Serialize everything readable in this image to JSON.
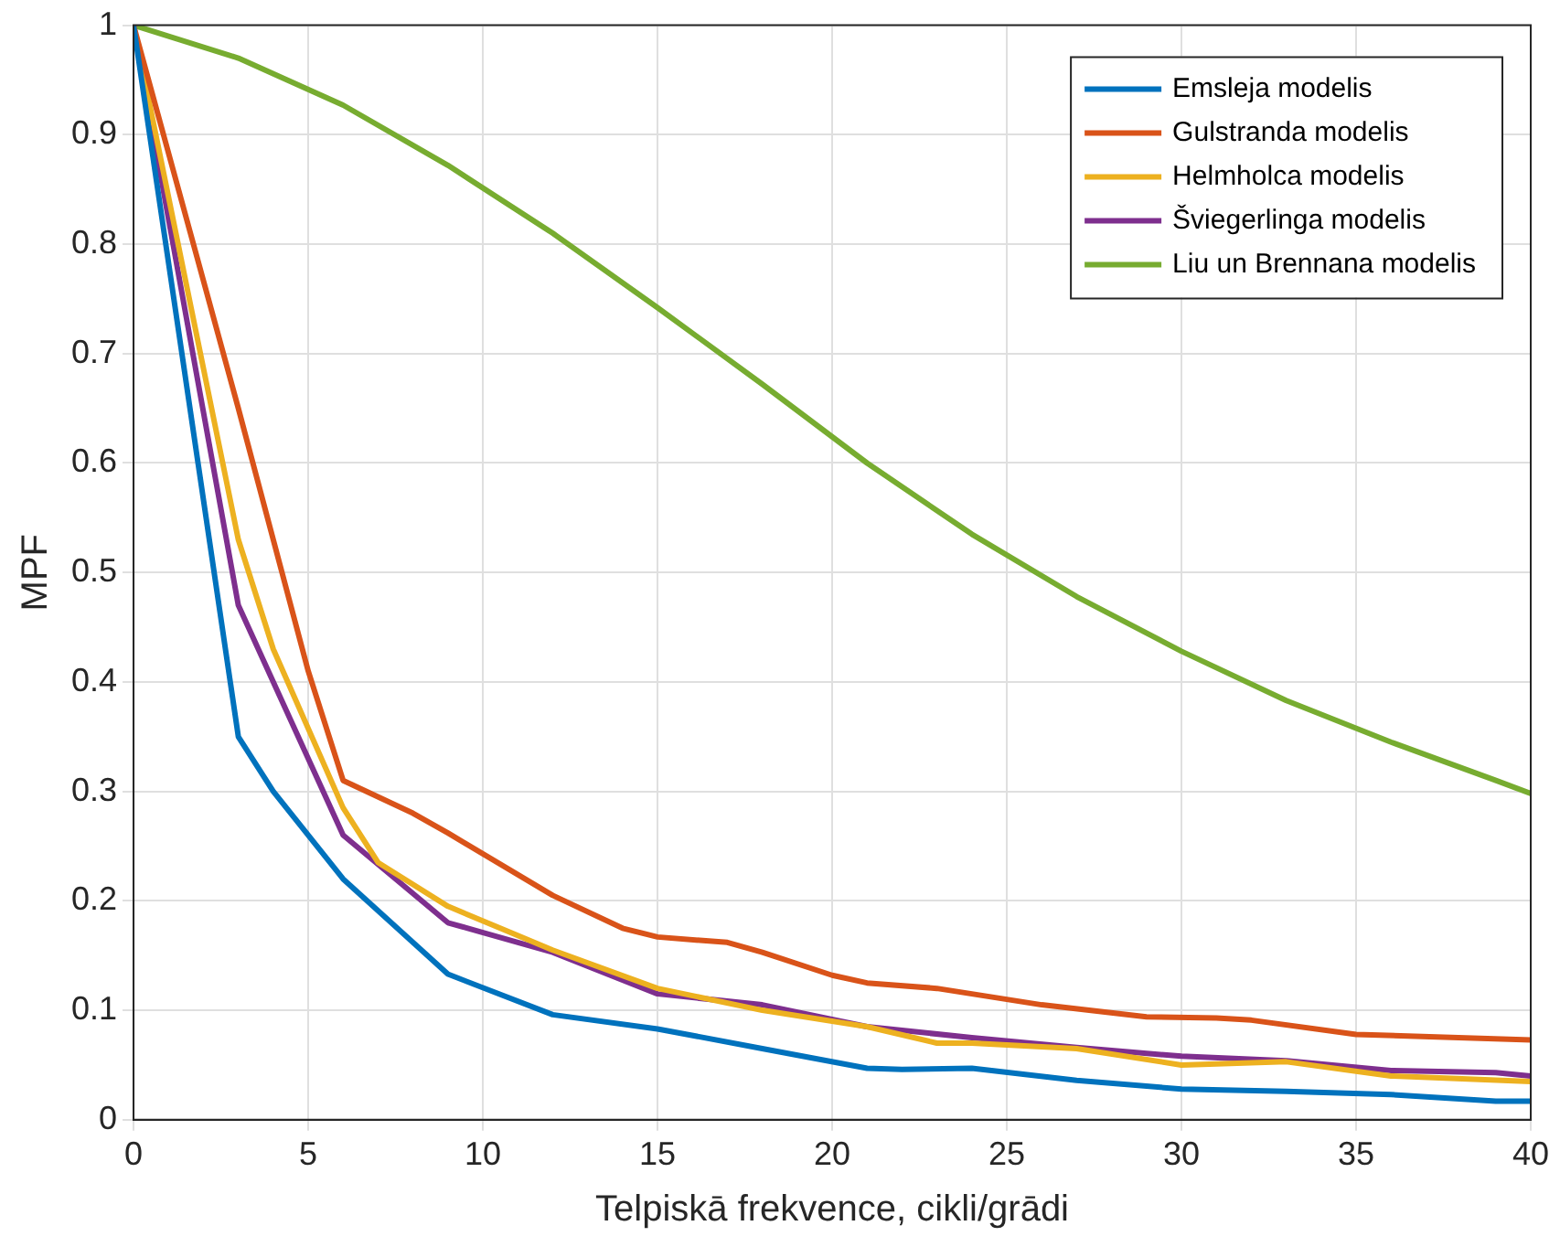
{
  "chart_data": {
    "type": "line",
    "xlabel": "Telpiskā frekvence, cikli/grādi",
    "ylabel": "MPF",
    "xlim": [
      0,
      40
    ],
    "xticks": [
      0,
      5,
      10,
      15,
      20,
      25,
      30,
      35,
      40
    ],
    "ylim": [
      0,
      1
    ],
    "yticks": [
      0,
      0.1,
      0.2,
      0.3,
      0.4,
      0.5,
      0.6,
      0.7,
      0.8,
      0.9,
      1
    ],
    "grid": true,
    "legend": "top right",
    "marker": "none",
    "line_style": "solid",
    "series": [
      {
        "name": "Emsleja modelis",
        "color": "#0072bd",
        "x": [
          0,
          3,
          4,
          6,
          9,
          12,
          15,
          18,
          21,
          22,
          24,
          27,
          30,
          33,
          36,
          39,
          40
        ],
        "values": [
          1,
          0.35,
          0.3,
          0.22,
          0.133,
          0.096,
          0.083,
          0.065,
          0.047,
          0.046,
          0.047,
          0.036,
          0.028,
          0.026,
          0.023,
          0.017,
          0.017
        ]
      },
      {
        "name": "Gulstranda modelis",
        "color": "#d95319",
        "x": [
          0,
          3,
          5,
          6,
          8,
          9,
          12,
          14,
          15,
          17,
          18,
          20,
          21,
          23,
          26,
          29,
          31,
          32,
          35,
          40
        ],
        "values": [
          1,
          0.65,
          0.41,
          0.31,
          0.28,
          0.262,
          0.205,
          0.175,
          0.167,
          0.162,
          0.153,
          0.132,
          0.125,
          0.12,
          0.105,
          0.094,
          0.093,
          0.091,
          0.078,
          0.073
        ]
      },
      {
        "name": "Helmholca modelis",
        "color": "#edb120",
        "x": [
          0,
          3,
          4,
          6,
          7,
          9,
          12,
          15,
          18,
          21,
          23,
          24,
          27,
          30,
          33,
          36,
          40
        ],
        "values": [
          1,
          0.53,
          0.43,
          0.285,
          0.235,
          0.195,
          0.155,
          0.12,
          0.1,
          0.085,
          0.07,
          0.07,
          0.065,
          0.05,
          0.053,
          0.04,
          0.035
        ]
      },
      {
        "name": "Šviegerlinga modelis",
        "color": "#7e2f8e",
        "x": [
          0,
          3,
          6,
          9,
          12,
          15,
          18,
          21,
          24,
          27,
          30,
          33,
          36,
          39,
          40
        ],
        "values": [
          1,
          0.47,
          0.26,
          0.18,
          0.153,
          0.115,
          0.105,
          0.085,
          0.075,
          0.066,
          0.058,
          0.054,
          0.045,
          0.043,
          0.04
        ]
      },
      {
        "name": "Liu un Brennana modelis",
        "color": "#77ac30",
        "x": [
          0,
          3,
          6,
          9,
          12,
          15,
          18,
          21,
          24,
          27,
          30,
          33,
          36,
          39,
          40
        ],
        "values": [
          1,
          0.97,
          0.927,
          0.872,
          0.81,
          0.742,
          0.672,
          0.6,
          0.535,
          0.478,
          0.428,
          0.383,
          0.345,
          0.31,
          0.298
        ]
      }
    ]
  }
}
